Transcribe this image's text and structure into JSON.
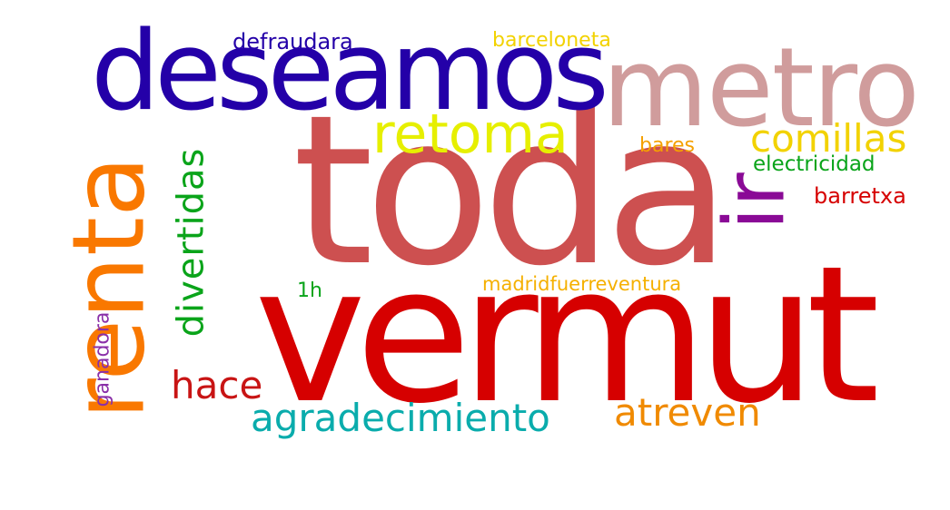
{
  "words": {
    "toda": {
      "text": "toda",
      "color": "#cd5050"
    },
    "vermut": {
      "text": "vermut",
      "color": "#d60000"
    },
    "deseamos": {
      "text": "deseamos",
      "color": "#2400a8"
    },
    "metro": {
      "text": "metro",
      "color": "#d09c9c"
    },
    "renta": {
      "text": "renta",
      "color": "#f97800"
    },
    "ir": {
      "text": "ir",
      "color": "#8a0a96"
    },
    "retoma": {
      "text": "retoma",
      "color": "#e6ef00"
    },
    "divertidas": {
      "text": "divertidas",
      "color": "#0aa41a"
    },
    "comillas": {
      "text": "comillas",
      "color": "#f2d200"
    },
    "agradecimiento": {
      "text": "agradecimiento",
      "color": "#0aacac"
    },
    "atreven": {
      "text": "atreven",
      "color": "#f08a00"
    },
    "hace": {
      "text": "hace",
      "color": "#c81414"
    },
    "electricidad": {
      "text": "electricidad",
      "color": "#0aa41a"
    },
    "barretxa": {
      "text": "barretxa",
      "color": "#d60000"
    },
    "bares": {
      "text": "bares",
      "color": "#f5a000"
    },
    "defraudara": {
      "text": "defraudara",
      "color": "#2400a8"
    },
    "barceloneta": {
      "text": "barceloneta",
      "color": "#f2d200"
    },
    "madridfuerreventura": {
      "text": "madridfuerreventura",
      "color": "#f5b000"
    },
    "one_h": {
      "text": "1h",
      "color": "#0aa41a"
    },
    "ganadora": {
      "text": "ganadora",
      "color": "#8a30a8"
    }
  }
}
